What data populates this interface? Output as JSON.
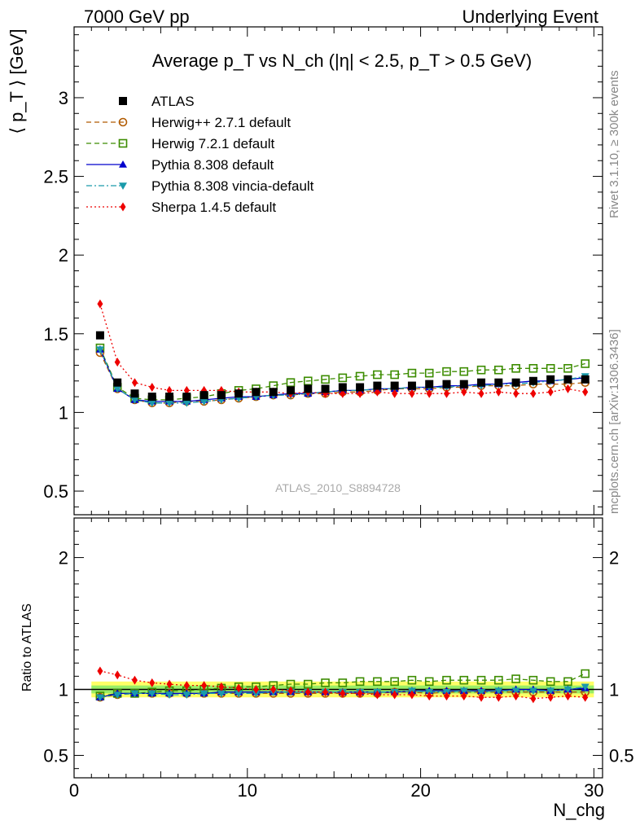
{
  "header": {
    "left": "7000 GeV pp",
    "right": "Underlying Event"
  },
  "side_labels": {
    "rivet": "Rivet 3.1.10, ≥ 300k events",
    "mcplots": "mcplots.cern.ch [arXiv:1306.3436]"
  },
  "chart_data": [
    {
      "type": "scatter",
      "title": "Average p_T vs N_ch (|η| < 2.5, p_T > 0.5 GeV)",
      "watermark": "ATLAS_2010_S8894728",
      "xlabel": "N_chg",
      "ylabel": "⟨ p_T ⟩ [GeV]",
      "xlim": [
        0,
        30.5
      ],
      "ylim": [
        0.35,
        3.45
      ],
      "y_ticks": [
        0.5,
        1,
        1.5,
        2,
        2.5,
        3
      ],
      "x_ticks": [
        0,
        10,
        20,
        30
      ],
      "legend_position": "top-left",
      "x": [
        1.5,
        2.5,
        3.5,
        4.5,
        5.5,
        6.5,
        7.5,
        8.5,
        9.5,
        10.5,
        11.5,
        12.5,
        13.5,
        14.5,
        15.5,
        16.5,
        17.5,
        18.5,
        19.5,
        20.5,
        21.5,
        22.5,
        23.5,
        24.5,
        25.5,
        26.5,
        27.5,
        28.5,
        29.5
      ],
      "series": [
        {
          "name": "ATLAS",
          "color": "#000000",
          "marker": "square-filled",
          "line": "none",
          "values": [
            1.49,
            1.19,
            1.12,
            1.1,
            1.1,
            1.1,
            1.11,
            1.11,
            1.12,
            1.13,
            1.13,
            1.14,
            1.15,
            1.15,
            1.16,
            1.16,
            1.17,
            1.17,
            1.17,
            1.18,
            1.18,
            1.18,
            1.19,
            1.19,
            1.19,
            1.2,
            1.21,
            1.21,
            1.21
          ]
        },
        {
          "name": "Herwig++ 2.7.1 default",
          "color": "#b15a00",
          "marker": "circle-open",
          "line": "dashed",
          "values": [
            1.38,
            1.15,
            1.08,
            1.06,
            1.06,
            1.07,
            1.07,
            1.08,
            1.09,
            1.1,
            1.11,
            1.11,
            1.12,
            1.12,
            1.13,
            1.13,
            1.14,
            1.15,
            1.15,
            1.15,
            1.16,
            1.16,
            1.17,
            1.17,
            1.17,
            1.18,
            1.18,
            1.18,
            1.19
          ]
        },
        {
          "name": "Herwig 7.2.1 default",
          "color": "#3c8c00",
          "marker": "square-open",
          "line": "dashed",
          "values": [
            1.41,
            1.16,
            1.09,
            1.08,
            1.08,
            1.09,
            1.1,
            1.12,
            1.14,
            1.15,
            1.17,
            1.19,
            1.2,
            1.21,
            1.22,
            1.23,
            1.24,
            1.24,
            1.25,
            1.25,
            1.26,
            1.26,
            1.27,
            1.27,
            1.28,
            1.28,
            1.28,
            1.28,
            1.31
          ]
        },
        {
          "name": "Pythia 8.308 default",
          "color": "#0000cc",
          "marker": "triangle-up",
          "line": "solid",
          "values": [
            1.4,
            1.15,
            1.08,
            1.07,
            1.07,
            1.07,
            1.08,
            1.09,
            1.1,
            1.1,
            1.11,
            1.12,
            1.12,
            1.13,
            1.14,
            1.14,
            1.15,
            1.15,
            1.16,
            1.16,
            1.17,
            1.17,
            1.18,
            1.18,
            1.19,
            1.2,
            1.2,
            1.21,
            1.22
          ]
        },
        {
          "name": "Pythia 8.308 vincia-default",
          "color": "#1a9aaa",
          "marker": "triangle-down",
          "line": "dashdot",
          "values": [
            1.4,
            1.15,
            1.08,
            1.06,
            1.06,
            1.06,
            1.07,
            1.08,
            1.09,
            1.1,
            1.11,
            1.11,
            1.12,
            1.13,
            1.14,
            1.14,
            1.15,
            1.15,
            1.16,
            1.16,
            1.16,
            1.17,
            1.17,
            1.18,
            1.18,
            1.19,
            1.2,
            1.21,
            1.23
          ]
        },
        {
          "name": "Sherpa 1.4.5 default",
          "color": "#ee0000",
          "marker": "diamond",
          "line": "dotted",
          "values": [
            1.69,
            1.32,
            1.19,
            1.16,
            1.14,
            1.14,
            1.14,
            1.14,
            1.13,
            1.13,
            1.13,
            1.12,
            1.13,
            1.12,
            1.12,
            1.12,
            1.13,
            1.12,
            1.12,
            1.12,
            1.12,
            1.13,
            1.12,
            1.13,
            1.12,
            1.12,
            1.13,
            1.15,
            1.13
          ]
        }
      ]
    },
    {
      "type": "scatter",
      "title": "",
      "xlabel": "N_chg",
      "ylabel": "Ratio to ATLAS",
      "xlim": [
        0,
        30.5
      ],
      "ylim": [
        0.33,
        2.3
      ],
      "y_ticks_left": [
        0.5,
        1,
        2
      ],
      "y_ticks_right": [
        0.5,
        1,
        2
      ],
      "x_ticks": [
        0,
        10,
        20,
        30
      ],
      "uncertainty_band": {
        "inner": 0.03,
        "outer": 0.06
      },
      "x": [
        1.5,
        2.5,
        3.5,
        4.5,
        5.5,
        6.5,
        7.5,
        8.5,
        9.5,
        10.5,
        11.5,
        12.5,
        13.5,
        14.5,
        15.5,
        16.5,
        17.5,
        18.5,
        19.5,
        20.5,
        21.5,
        22.5,
        23.5,
        24.5,
        25.5,
        26.5,
        27.5,
        28.5,
        29.5
      ],
      "series": [
        {
          "name": "Herwig++ 2.7.1 default",
          "values": [
            0.94,
            0.96,
            0.97,
            0.97,
            0.97,
            0.97,
            0.97,
            0.97,
            0.97,
            0.97,
            0.97,
            0.97,
            0.97,
            0.97,
            0.97,
            0.97,
            0.97,
            0.98,
            0.98,
            0.97,
            0.98,
            0.98,
            0.98,
            0.98,
            0.98,
            0.98,
            0.98,
            0.98,
            0.98
          ]
        },
        {
          "name": "Herwig 7.2.1 default",
          "values": [
            0.95,
            0.97,
            0.97,
            0.98,
            0.99,
            0.99,
            1.0,
            1.01,
            1.02,
            1.02,
            1.03,
            1.04,
            1.04,
            1.05,
            1.05,
            1.06,
            1.06,
            1.06,
            1.07,
            1.06,
            1.07,
            1.07,
            1.07,
            1.07,
            1.08,
            1.07,
            1.06,
            1.06,
            1.12
          ]
        },
        {
          "name": "Pythia 8.308 default",
          "values": [
            0.94,
            0.97,
            0.97,
            0.97,
            0.97,
            0.97,
            0.97,
            0.98,
            0.98,
            0.98,
            0.98,
            0.98,
            0.98,
            0.98,
            0.98,
            0.98,
            0.98,
            0.98,
            0.99,
            0.99,
            0.99,
            0.99,
            0.99,
            0.99,
            1.0,
            1.0,
            0.99,
            1.0,
            1.01
          ]
        },
        {
          "name": "Pythia 8.308 vincia-default",
          "values": [
            0.94,
            0.96,
            0.97,
            0.97,
            0.96,
            0.96,
            0.97,
            0.97,
            0.97,
            0.97,
            0.98,
            0.98,
            0.98,
            0.98,
            0.98,
            0.98,
            0.98,
            0.98,
            0.99,
            0.98,
            0.98,
            0.99,
            0.98,
            0.99,
            0.99,
            0.99,
            0.99,
            1.0,
            1.02
          ]
        },
        {
          "name": "Sherpa 1.4.5 default",
          "values": [
            1.14,
            1.11,
            1.07,
            1.05,
            1.04,
            1.03,
            1.03,
            1.02,
            1.01,
            1.0,
            1.0,
            0.99,
            0.98,
            0.98,
            0.97,
            0.97,
            0.96,
            0.96,
            0.96,
            0.95,
            0.95,
            0.95,
            0.94,
            0.94,
            0.95,
            0.93,
            0.94,
            0.95,
            0.94
          ]
        }
      ]
    }
  ]
}
